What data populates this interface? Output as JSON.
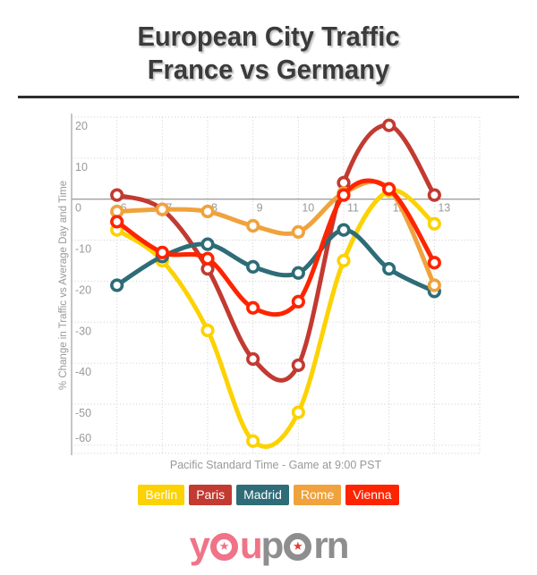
{
  "title": {
    "line1": "European City Traffic",
    "line2": "France vs Germany"
  },
  "chart_data": {
    "type": "line",
    "x": [
      6,
      7,
      8,
      9,
      10,
      11,
      12,
      13
    ],
    "xticks": [
      6,
      7,
      8,
      9,
      10,
      11,
      12,
      13
    ],
    "yticks": [
      20,
      10,
      0,
      -10,
      -20,
      -30,
      -40,
      -50,
      -60
    ],
    "xlim": [
      5,
      14
    ],
    "ylim": [
      -62,
      20
    ],
    "grid": true,
    "legend_position": "bottom",
    "xlabel": "Pacific Standard Time - Game at 9:00 PST",
    "ylabel": "% Change in Traffic vs Average Day and Time",
    "series": [
      {
        "name": "Berlin",
        "color": "#FCD202",
        "values": [
          -7.5,
          -15,
          -32,
          -59,
          -52,
          -15,
          2,
          -6
        ]
      },
      {
        "name": "Paris",
        "color": "#C23A31",
        "values": [
          1,
          -2.5,
          -17,
          -39,
          -40.5,
          4,
          18,
          1
        ]
      },
      {
        "name": "Madrid",
        "color": "#2E6C77",
        "values": [
          -21,
          -14,
          -11,
          -16.5,
          -18,
          -7.5,
          -17,
          -22.5
        ]
      },
      {
        "name": "Rome",
        "color": "#F0A23C",
        "values": [
          -3,
          -2.5,
          -3,
          -6.5,
          -8,
          1.5,
          2.5,
          -21
        ]
      },
      {
        "name": "Vienna",
        "color": "#FE2400",
        "values": [
          -5.5,
          -13,
          -14.5,
          -26.5,
          -25,
          1,
          2.5,
          -15.5
        ]
      }
    ]
  },
  "style": {
    "axis_text_color": "#999999",
    "grid_color": "#cccccc",
    "zero_line_color": "#9f9f9f",
    "axis_line_color": "#b3b3b3",
    "title_color": "#3b3b3b"
  },
  "logo": {
    "left_1": "y",
    "left_2": "u",
    "right_1": "p",
    "right_2": "r",
    "right_3": "n",
    "star": "★",
    "left_color": "#F07387",
    "right_color": "#8E8E8E",
    "star_right_color": "#E23D34"
  }
}
